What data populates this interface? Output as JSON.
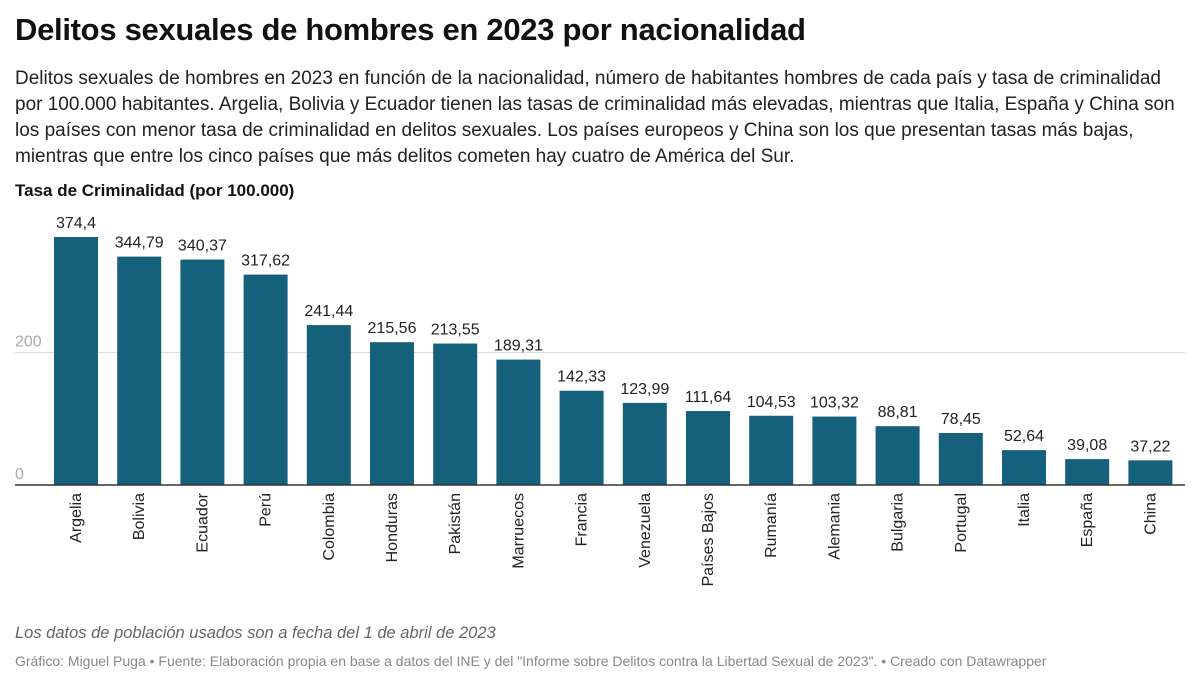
{
  "header": {
    "title": "Delitos sexuales de hombres en 2023 por nacionalidad",
    "description": "Delitos sexuales de hombres en 2023 en función de la nacionalidad, número de habitantes hombres de cada país y tasa de criminalidad por 100.000 habitantes. Argelia, Bolivia y Ecuador tienen las tasas de criminalidad más elevadas, mientras que Italia, España y China son los países con menor tasa de criminalidad en delitos sexuales. Los países europeos y China son los que presentan tasas más bajas, mientras que entre los cinco países que más delitos cometen hay cuatro de América del Sur."
  },
  "notes": "Los datos de población usados son a fecha del 1 de abril de 2023",
  "footer": "Gráfico: Miguel Puga • Fuente: Elaboración propia en base a datos del INE y del \"Informe sobre Delitos contra la Libertad Sexual de 2023\". • Creado con Datawrapper",
  "chart_data": {
    "type": "bar",
    "ylabel": "Tasa de Criminalidad (por 100.000)",
    "xlabel": "",
    "ylim": [
      0,
      374.4
    ],
    "yticks": [
      0,
      200
    ],
    "yticks_label": [
      "0",
      "200"
    ],
    "grid": true,
    "bar_color": "#15607a",
    "categories": [
      "Argelia",
      "Bolivia",
      "Ecuador",
      "Perú",
      "Colombia",
      "Honduras",
      "Pakistán",
      "Marruecos",
      "Francia",
      "Venezuela",
      "Países Bajos",
      "Rumanía",
      "Alemania",
      "Bulgaria",
      "Portugal",
      "Italia",
      "España",
      "China"
    ],
    "values": [
      374.4,
      344.79,
      340.37,
      317.62,
      241.44,
      215.56,
      213.55,
      189.31,
      142.33,
      123.99,
      111.64,
      104.53,
      103.32,
      88.81,
      78.45,
      52.64,
      39.08,
      37.22
    ],
    "value_labels": [
      "374,4",
      "344,79",
      "340,37",
      "317,62",
      "241,44",
      "215,56",
      "213,55",
      "189,31",
      "142,33",
      "123,99",
      "111,64",
      "104,53",
      "103,32",
      "88,81",
      "78,45",
      "52,64",
      "39,08",
      "37,22"
    ]
  }
}
